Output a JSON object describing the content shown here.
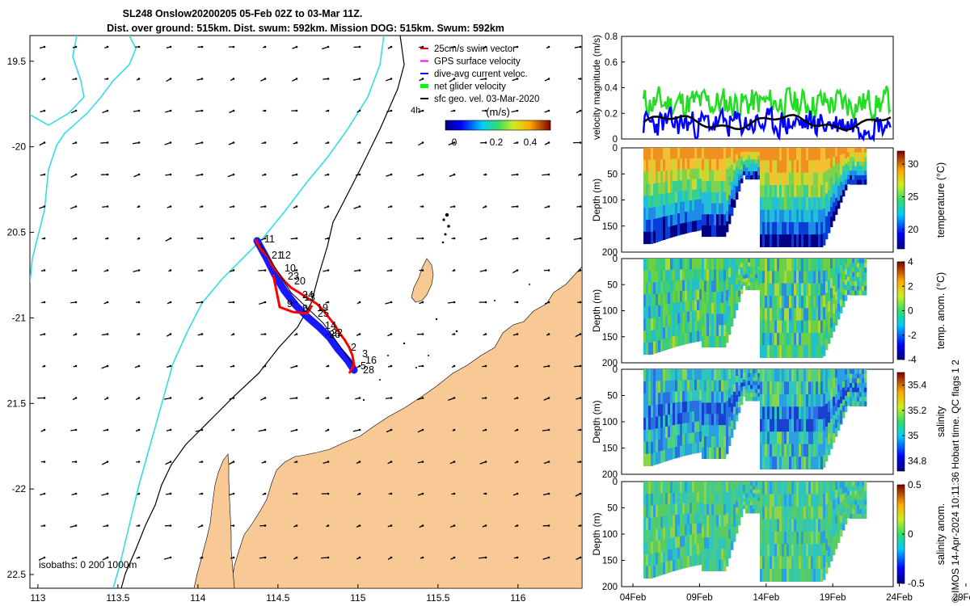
{
  "chart_data": [
    {
      "type": "map",
      "title_line1": "SL248 Onslow20200205 05-Feb 02Z to 03-Mar 11Z.",
      "title_line2": "Dist. over ground: 515km. Dist. swum: 592km. Mission DOG: 515km. Swum: 592km",
      "xlim": [
        112.95,
        116.4
      ],
      "ylim": [
        -22.58,
        -19.35
      ],
      "xticks": [
        113,
        113.5,
        114,
        114.5,
        115,
        115.5,
        116
      ],
      "xtick_labels": [
        "113",
        "113.5",
        "114",
        "114.5",
        "115",
        "115.5",
        "116"
      ],
      "yticks": [
        -19.5,
        -20,
        -20.5,
        -21,
        -21.5,
        -22,
        -22.5
      ],
      "ytick_labels": [
        "19.5",
        "-20",
        "20.5",
        "-21",
        "21.5",
        "-22",
        "22.5"
      ],
      "legend": [
        {
          "label": "25cm/s swim vector",
          "color": "#ff0000"
        },
        {
          "label": "GPS surface velocity",
          "color": "#ff00ff"
        },
        {
          "label": "dive-avg current veloc.",
          "color": "#0000ff"
        },
        {
          "label": "net glider velocity",
          "color": "#00ff00"
        },
        {
          "label": "sfc geo. vel. 03-Mar-2020",
          "color": "#000000"
        }
      ],
      "legend_note": "4h",
      "colorbar": {
        "label": "(m/s)",
        "ticks": [
          "0",
          "0.2",
          "0.4"
        ],
        "range": [
          0,
          0.5
        ]
      },
      "isobath_label": "isobaths: 0   200  1000m",
      "track_labels": [
        "11",
        "21",
        "12",
        "10",
        "23",
        "20",
        "24",
        "13",
        "19",
        "9",
        "8",
        "25",
        "14",
        "26",
        "22",
        "2",
        "3",
        "16",
        "5",
        "28"
      ],
      "colors": {
        "land": "#f8c895",
        "coast_1000m": "#33dde6",
        "isobath": "#000000",
        "track_red": "#ff0000",
        "track_blue": "#0000ff"
      }
    },
    {
      "type": "line",
      "ylabel": "velocity magnitude (m/s)",
      "ylim": [
        0,
        0.8
      ],
      "yticks": [
        "0",
        "0.2",
        "0.4",
        "0.6",
        "0.8"
      ],
      "series": [
        {
          "name": "net glider velocity",
          "color": "#22dd22",
          "mean": 0.28
        },
        {
          "name": "dive-avg current",
          "color": "#0000ff",
          "mean": 0.12
        },
        {
          "name": "smoothed",
          "color": "#000000",
          "mean": 0.13
        }
      ]
    },
    {
      "type": "heatmap",
      "ylabel": "Depth (m)",
      "ylim": [
        0,
        200
      ],
      "yticks": [
        "0",
        "50",
        "100",
        "150",
        "200"
      ],
      "cbar_label": "temperature (°C)",
      "cbar_ticks": [
        "20",
        "25",
        "30"
      ],
      "crange": [
        17,
        32
      ]
    },
    {
      "type": "heatmap",
      "ylabel": "Depth (m)",
      "ylim": [
        0,
        200
      ],
      "yticks": [
        "0",
        "50",
        "100",
        "150",
        "200"
      ],
      "cbar_label": "temp. anom. (°C)",
      "cbar_ticks": [
        "-4",
        "-2",
        "0",
        "2",
        "4"
      ],
      "crange": [
        -4,
        4
      ]
    },
    {
      "type": "heatmap",
      "ylabel": "Depth (m)",
      "ylim": [
        0,
        200
      ],
      "yticks": [
        "0",
        "50",
        "100",
        "150",
        "200"
      ],
      "cbar_label": "salinity",
      "cbar_ticks": [
        "34.8",
        "35",
        "35.2",
        "35.4"
      ],
      "crange": [
        34.72,
        35.5
      ]
    },
    {
      "type": "heatmap",
      "ylabel": "Depth (m)",
      "ylim": [
        0,
        200
      ],
      "yticks": [
        "0",
        "50",
        "100",
        "150",
        "200"
      ],
      "cbar_label": "salinity anom.",
      "cbar_ticks": [
        "-0.5",
        "0",
        "0.5"
      ],
      "crange": [
        -0.5,
        0.5
      ]
    }
  ],
  "time_axis": {
    "labels": [
      "04Feb",
      "09Feb",
      "14Feb",
      "19Feb",
      "24Feb",
      "29Feb"
    ]
  },
  "footer": "© IMOS 14-Apr-2024 10:11:36 Hobart time. QC flags 1  2"
}
